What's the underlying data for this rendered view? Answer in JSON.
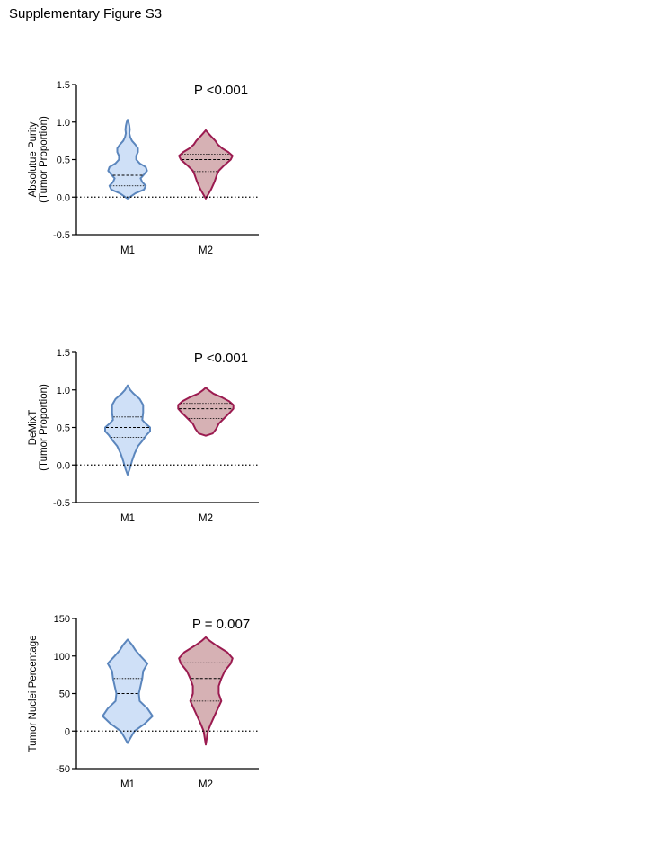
{
  "figure_title": "Supplementary Figure S3",
  "chart_data": [
    {
      "type": "violin",
      "title": "",
      "ylabel_lines": [
        "Absolutue Purity",
        "(Tumor Proportion)"
      ],
      "annotation": "P <0.001",
      "ylim": [
        -0.5,
        1.5
      ],
      "yticks": [
        -0.5,
        0.0,
        0.5,
        1.0,
        1.5
      ],
      "ytick_labels": [
        "-0.5",
        "0.0",
        "0.5",
        "1.0",
        "1.5"
      ],
      "reference_line": 0,
      "categories": [
        "M1",
        "M2"
      ],
      "series": [
        {
          "category": "M1",
          "fill": "#cfe0f7",
          "stroke": "#5b86bd",
          "quartiles": [
            0.15,
            0.29,
            0.43
          ],
          "profile": [
            [
              -0.02,
              0.0
            ],
            [
              0.0,
              0.05
            ],
            [
              0.05,
              0.18
            ],
            [
              0.1,
              0.38
            ],
            [
              0.15,
              0.42
            ],
            [
              0.2,
              0.34
            ],
            [
              0.25,
              0.3
            ],
            [
              0.3,
              0.38
            ],
            [
              0.35,
              0.45
            ],
            [
              0.4,
              0.42
            ],
            [
              0.45,
              0.28
            ],
            [
              0.5,
              0.2
            ],
            [
              0.55,
              0.2
            ],
            [
              0.6,
              0.24
            ],
            [
              0.65,
              0.24
            ],
            [
              0.7,
              0.18
            ],
            [
              0.75,
              0.1
            ],
            [
              0.8,
              0.06
            ],
            [
              0.85,
              0.04
            ],
            [
              0.9,
              0.05
            ],
            [
              0.95,
              0.04
            ],
            [
              1.0,
              0.02
            ],
            [
              1.03,
              0.0
            ]
          ]
        },
        {
          "category": "M2",
          "fill": "#d6b1b4",
          "stroke": "#9b1b50",
          "quartiles": [
            0.34,
            0.5,
            0.57
          ],
          "profile": [
            [
              -0.02,
              0.0
            ],
            [
              0.02,
              0.04
            ],
            [
              0.1,
              0.12
            ],
            [
              0.2,
              0.2
            ],
            [
              0.3,
              0.26
            ],
            [
              0.35,
              0.3
            ],
            [
              0.42,
              0.42
            ],
            [
              0.5,
              0.58
            ],
            [
              0.55,
              0.62
            ],
            [
              0.6,
              0.52
            ],
            [
              0.65,
              0.38
            ],
            [
              0.7,
              0.28
            ],
            [
              0.75,
              0.22
            ],
            [
              0.8,
              0.14
            ],
            [
              0.85,
              0.06
            ],
            [
              0.89,
              0.0
            ]
          ]
        }
      ]
    },
    {
      "type": "violin",
      "title": "",
      "ylabel_lines": [
        "DeMixT",
        "(Tumor Proportion)"
      ],
      "annotation": "P <0.001",
      "ylim": [
        -0.5,
        1.5
      ],
      "yticks": [
        -0.5,
        0.0,
        0.5,
        1.0,
        1.5
      ],
      "ytick_labels": [
        "-0.5",
        "0.0",
        "0.5",
        "1.0",
        "1.5"
      ],
      "reference_line": 0,
      "categories": [
        "M1",
        "M2"
      ],
      "series": [
        {
          "category": "M1",
          "fill": "#cfe0f7",
          "stroke": "#5b86bd",
          "quartiles": [
            0.37,
            0.5,
            0.64
          ],
          "profile": [
            [
              -0.13,
              0.0
            ],
            [
              -0.05,
              0.05
            ],
            [
              0.05,
              0.1
            ],
            [
              0.15,
              0.16
            ],
            [
              0.25,
              0.24
            ],
            [
              0.32,
              0.34
            ],
            [
              0.4,
              0.44
            ],
            [
              0.45,
              0.52
            ],
            [
              0.5,
              0.52
            ],
            [
              0.55,
              0.42
            ],
            [
              0.6,
              0.34
            ],
            [
              0.7,
              0.36
            ],
            [
              0.8,
              0.36
            ],
            [
              0.88,
              0.28
            ],
            [
              0.95,
              0.14
            ],
            [
              1.0,
              0.06
            ],
            [
              1.06,
              0.0
            ]
          ]
        },
        {
          "category": "M2",
          "fill": "#d6b1b4",
          "stroke": "#9b1b50",
          "quartiles": [
            0.62,
            0.75,
            0.82
          ],
          "profile": [
            [
              0.39,
              0.0
            ],
            [
              0.42,
              0.16
            ],
            [
              0.48,
              0.24
            ],
            [
              0.55,
              0.3
            ],
            [
              0.62,
              0.42
            ],
            [
              0.7,
              0.56
            ],
            [
              0.75,
              0.64
            ],
            [
              0.8,
              0.64
            ],
            [
              0.85,
              0.54
            ],
            [
              0.9,
              0.38
            ],
            [
              0.95,
              0.18
            ],
            [
              1.0,
              0.06
            ],
            [
              1.03,
              0.0
            ]
          ]
        }
      ]
    },
    {
      "type": "violin",
      "title": "",
      "ylabel_lines": [
        "Tumor Nuclei Percentage"
      ],
      "annotation": "P = 0.007",
      "ylim": [
        -50,
        150
      ],
      "yticks": [
        -50,
        0,
        50,
        100,
        150
      ],
      "ytick_labels": [
        "-50",
        "0",
        "50",
        "100",
        "150"
      ],
      "reference_line": 0,
      "categories": [
        "M1",
        "M2"
      ],
      "series": [
        {
          "category": "M1",
          "fill": "#cfe0f7",
          "stroke": "#5b86bd",
          "quartiles": [
            20,
            50,
            70
          ],
          "profile": [
            [
              -16,
              0.0
            ],
            [
              -8,
              0.08
            ],
            [
              0,
              0.16
            ],
            [
              10,
              0.4
            ],
            [
              20,
              0.58
            ],
            [
              30,
              0.46
            ],
            [
              40,
              0.28
            ],
            [
              50,
              0.26
            ],
            [
              60,
              0.3
            ],
            [
              70,
              0.34
            ],
            [
              80,
              0.36
            ],
            [
              90,
              0.46
            ],
            [
              100,
              0.3
            ],
            [
              108,
              0.18
            ],
            [
              115,
              0.1
            ],
            [
              122,
              0.0
            ]
          ]
        },
        {
          "category": "M2",
          "fill": "#d6b1b4",
          "stroke": "#9b1b50",
          "quartiles": [
            40,
            70,
            91
          ],
          "profile": [
            [
              -18,
              0.0
            ],
            [
              0,
              0.05
            ],
            [
              10,
              0.12
            ],
            [
              20,
              0.2
            ],
            [
              30,
              0.28
            ],
            [
              40,
              0.36
            ],
            [
              50,
              0.3
            ],
            [
              60,
              0.3
            ],
            [
              70,
              0.36
            ],
            [
              80,
              0.44
            ],
            [
              90,
              0.58
            ],
            [
              97,
              0.62
            ],
            [
              105,
              0.5
            ],
            [
              115,
              0.22
            ],
            [
              120,
              0.1
            ],
            [
              125,
              0.0
            ]
          ]
        }
      ]
    }
  ]
}
